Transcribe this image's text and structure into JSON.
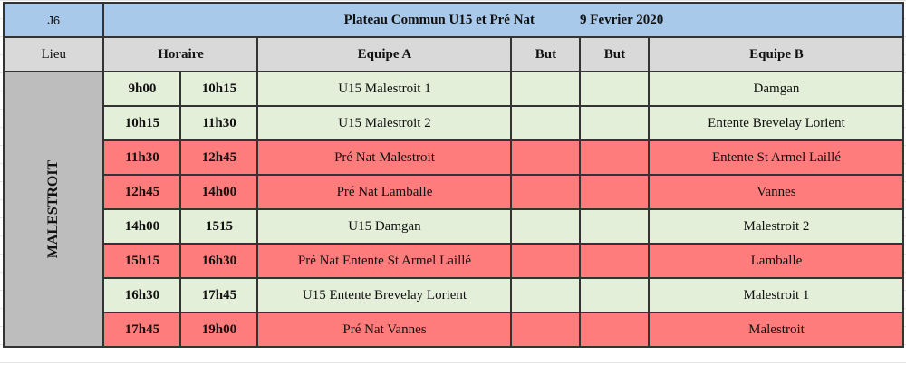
{
  "header": {
    "day": "J6",
    "title": "Plateau Commun U15 et Pré Nat",
    "date": "9 Fevrier 2020"
  },
  "columns": {
    "lieu": "Lieu",
    "horaire": "Horaire",
    "equipe_a": "Equipe A",
    "but1": "But",
    "but2": "But",
    "equipe_b": "Equipe B"
  },
  "venue": "MALESTROIT",
  "colors": {
    "header": "#a9c9ea",
    "u15": "#e3efd9",
    "prenat": "#ff7c7c",
    "grey": "#d9d9d9"
  },
  "rows": [
    {
      "start": "9h00",
      "end": "10h15",
      "team_a": "U15  Malestroit 1",
      "score_a": "",
      "score_b": "",
      "team_b": "Damgan",
      "category": "u15"
    },
    {
      "start": "10h15",
      "end": "11h30",
      "team_a": "U15  Malestroit 2",
      "score_a": "",
      "score_b": "",
      "team_b": "Entente Brevelay Lorient",
      "category": "u15"
    },
    {
      "start": "11h30",
      "end": "12h45",
      "team_a": "Pré Nat  Malestroit",
      "score_a": "",
      "score_b": "",
      "team_b": "Entente St Armel Laillé",
      "category": "prenat"
    },
    {
      "start": "12h45",
      "end": "14h00",
      "team_a": "Pré Nat  Lamballe",
      "score_a": "",
      "score_b": "",
      "team_b": "Vannes",
      "category": "prenat"
    },
    {
      "start": "14h00",
      "end": "1515",
      "team_a": "U15  Damgan",
      "score_a": "",
      "score_b": "",
      "team_b": "Malestroit 2",
      "category": "u15"
    },
    {
      "start": "15h15",
      "end": "16h30",
      "team_a": "Pré Nat  Entente St Armel Laillé",
      "score_a": "",
      "score_b": "",
      "team_b": "Lamballe",
      "category": "prenat"
    },
    {
      "start": "16h30",
      "end": "17h45",
      "team_a": "U15  Entente Brevelay Lorient",
      "score_a": "",
      "score_b": "",
      "team_b": "Malestroit 1",
      "category": "u15"
    },
    {
      "start": "17h45",
      "end": "19h00",
      "team_a": "Pré Nat  Vannes",
      "score_a": "",
      "score_b": "",
      "team_b": "Malestroit",
      "category": "prenat"
    }
  ]
}
